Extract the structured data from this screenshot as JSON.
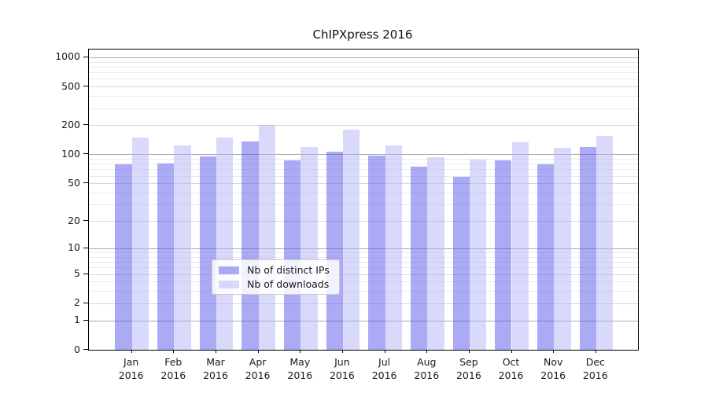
{
  "chart_data": {
    "type": "bar",
    "title": "ChIPXpress 2016",
    "categories": [
      "Jan",
      "Feb",
      "Mar",
      "Apr",
      "May",
      "Jun",
      "Jul",
      "Aug",
      "Sep",
      "Oct",
      "Nov",
      "Dec"
    ],
    "category_year": "2016",
    "series": [
      {
        "name": "Nb of distinct IPs",
        "color": "#5555EB",
        "alpha": 0.5,
        "values": [
          79,
          81,
          96,
          137,
          86,
          106,
          97,
          75,
          58,
          86,
          79,
          119
        ]
      },
      {
        "name": "Nb of downloads",
        "color": "#B4B4F7",
        "alpha": 0.5,
        "values": [
          148,
          124,
          148,
          202,
          119,
          180,
          124,
          93,
          88,
          133,
          118,
          156
        ]
      }
    ],
    "scale": "log1p",
    "ylim": [
      0,
      1200
    ],
    "y_ticks": [
      0,
      1,
      2,
      5,
      10,
      20,
      50,
      100,
      200,
      500,
      1000
    ],
    "minor_gridlines": [
      3,
      4,
      6,
      7,
      8,
      9,
      30,
      40,
      60,
      70,
      80,
      90,
      300,
      400,
      600,
      700,
      800,
      900
    ],
    "grid": true,
    "legend_position": "lower center",
    "colors": {
      "major_gridline": "#ABABAB",
      "mid_gridline": "#D6D6D6",
      "minor_gridline": "#EBEBEB",
      "axis": "#000000",
      "text": "#1A1A1A",
      "background": "#FFFFFF",
      "legend_border": "#CCCCCC"
    }
  }
}
